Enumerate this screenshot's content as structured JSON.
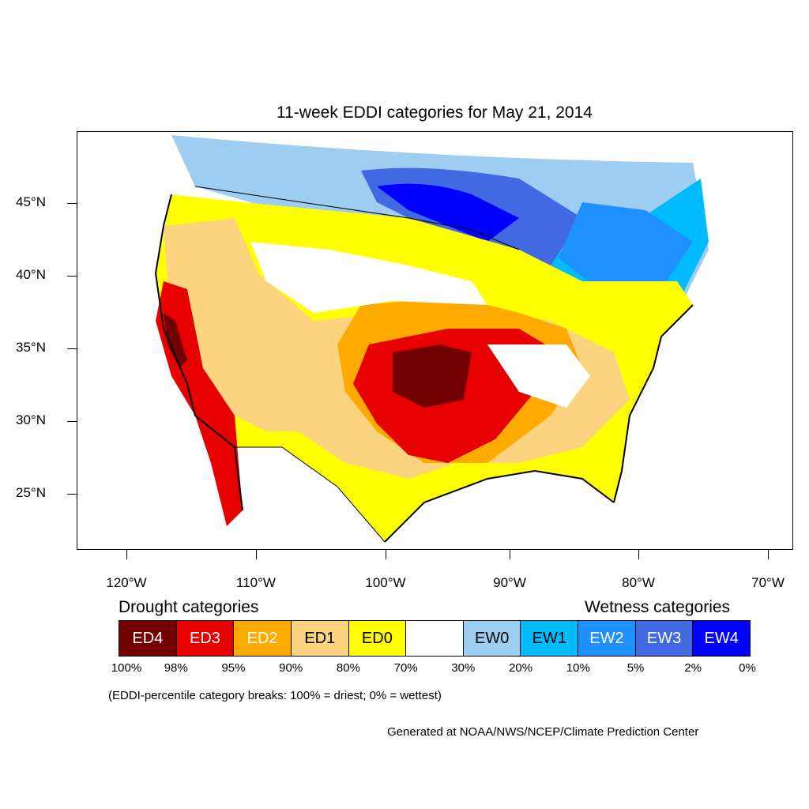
{
  "map": {
    "title": "11-week EDDI categories for May 21, 2014",
    "lat_labels": [
      "45°N",
      "40°N",
      "35°N",
      "30°N",
      "25°N"
    ],
    "lon_labels": [
      "120°W",
      "110°W",
      "100°W",
      "90°W",
      "80°W",
      "70°W"
    ]
  },
  "legend": {
    "drought_title": "Drought categories",
    "wet_title": "Wetness categories",
    "categories": [
      {
        "label": "ED4",
        "color": "#730000",
        "text_color": "#ffffff"
      },
      {
        "label": "ED3",
        "color": "#e60000",
        "text_color": "#ffffff"
      },
      {
        "label": "ED2",
        "color": "#ffaa00",
        "text_color": "#ffffff"
      },
      {
        "label": "ED1",
        "color": "#fcd37f",
        "text_color": "#000000"
      },
      {
        "label": "ED0",
        "color": "#ffff00",
        "text_color": "#000000"
      },
      {
        "label": "",
        "color": "#ffffff",
        "text_color": "#000000"
      },
      {
        "label": "EW0",
        "color": "#9dcdf0",
        "text_color": "#000000"
      },
      {
        "label": "EW1",
        "color": "#00bbff",
        "text_color": "#000000"
      },
      {
        "label": "EW2",
        "color": "#1e90ff",
        "text_color": "#ffffff"
      },
      {
        "label": "EW3",
        "color": "#4169e1",
        "text_color": "#ffffff"
      },
      {
        "label": "EW4",
        "color": "#0000ff",
        "text_color": "#ffffff"
      }
    ],
    "percent_breaks": [
      "100%",
      "98%",
      "95%",
      "90%",
      "80%",
      "70%",
      "30%",
      "20%",
      "10%",
      "5%",
      "2%",
      "0%"
    ],
    "note": "(EDDI-percentile category breaks: 100% = driest; 0% = wettest)"
  },
  "credit": "Generated at NOAA/NWS/NCEP/Climate Prediction Center"
}
